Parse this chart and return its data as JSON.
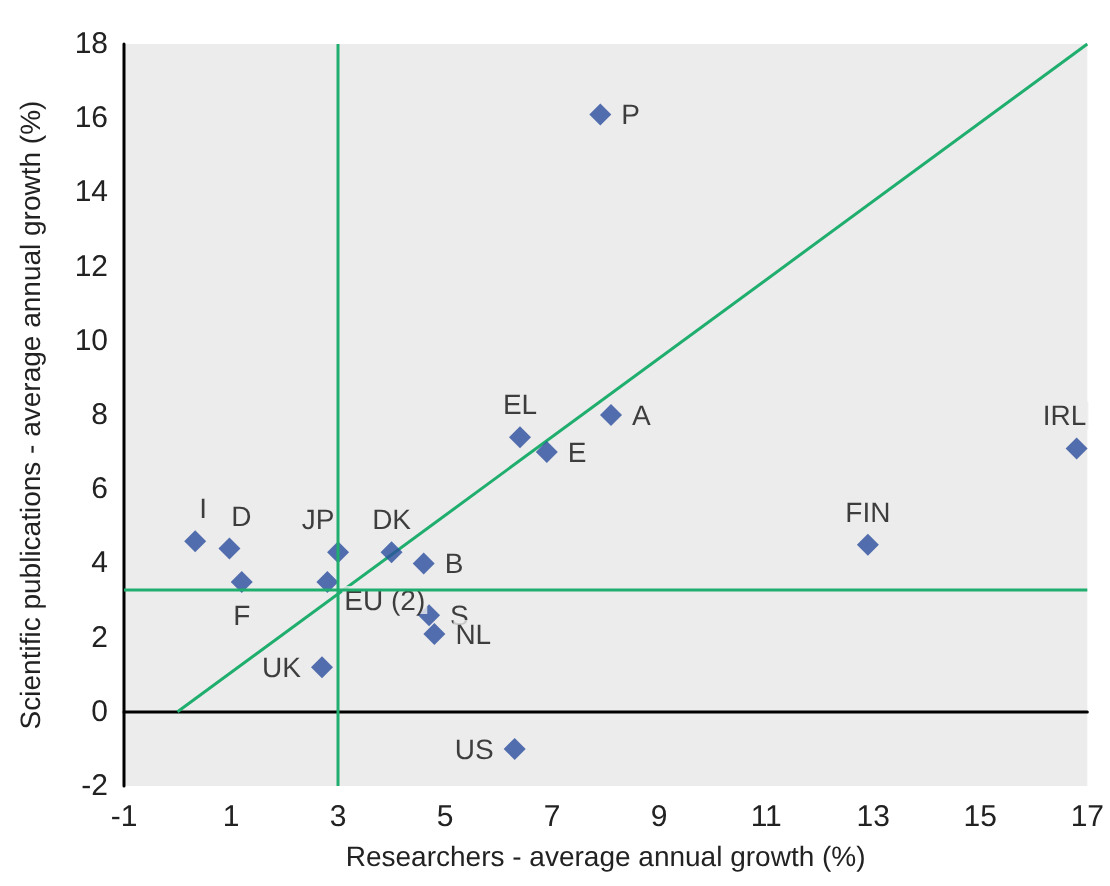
{
  "chart_data": {
    "type": "scatter",
    "xlabel": "Researchers - average annual growth (%)",
    "ylabel": "Scientific publications - average annual growth (%)",
    "xlim": [
      -1,
      17
    ],
    "xticks": [
      -1,
      1,
      3,
      5,
      7,
      9,
      11,
      13,
      15,
      17
    ],
    "ylim": [
      -2,
      18
    ],
    "yticks": [
      -2,
      0,
      2,
      4,
      6,
      8,
      10,
      12,
      14,
      16,
      18
    ],
    "grid": false,
    "legend": false,
    "marker": "diamond",
    "ref_lines": [
      {
        "axis": "x",
        "value": 3.0,
        "color": "#1fae6e"
      },
      {
        "axis": "y",
        "value": 3.3,
        "color": "#1fae6e"
      }
    ],
    "series": [
      {
        "name": "I",
        "color": "#2b4e9e",
        "x": [
          0.33
        ],
        "values": [
          4.6
        ]
      },
      {
        "name": "D",
        "color": "#2b4e9e",
        "x": [
          0.97
        ],
        "values": [
          4.4
        ]
      },
      {
        "name": "F",
        "color": "#2b4e9e",
        "x": [
          1.2
        ],
        "values": [
          3.5
        ]
      },
      {
        "name": "JP",
        "color": "#2b4e9e",
        "x": [
          3.0
        ],
        "values": [
          4.3
        ]
      },
      {
        "name": "EU (2)",
        "color": "#2b4e9e",
        "x": [
          2.8
        ],
        "values": [
          3.5
        ]
      },
      {
        "name": "UK",
        "color": "#2b4e9e",
        "x": [
          2.7
        ],
        "values": [
          1.2
        ]
      },
      {
        "name": "DK",
        "color": "#2b4e9e",
        "x": [
          4.0
        ],
        "values": [
          4.3
        ]
      },
      {
        "name": "B",
        "color": "#2b4e9e",
        "x": [
          4.6
        ],
        "values": [
          4.0
        ]
      },
      {
        "name": "S",
        "color": "#2b4e9e",
        "x": [
          4.7
        ],
        "values": [
          2.6
        ]
      },
      {
        "name": "NL",
        "color": "#2b4e9e",
        "x": [
          4.8
        ],
        "values": [
          2.1
        ]
      },
      {
        "name": "US",
        "color": "#2b4e9e",
        "x": [
          6.3
        ],
        "values": [
          -1.0
        ]
      },
      {
        "name": "EL",
        "color": "#2b4e9e",
        "x": [
          6.4
        ],
        "values": [
          7.4
        ]
      },
      {
        "name": "E",
        "color": "#2b4e9e",
        "x": [
          6.9
        ],
        "values": [
          7.0
        ]
      },
      {
        "name": "A",
        "color": "#2b4e9e",
        "x": [
          8.1
        ],
        "values": [
          8.0
        ]
      },
      {
        "name": "P",
        "color": "#2b4e9e",
        "x": [
          7.9
        ],
        "values": [
          16.1
        ]
      },
      {
        "name": "FIN",
        "color": "#2b4e9e",
        "x": [
          12.9
        ],
        "values": [
          4.5
        ]
      },
      {
        "name": "IRL",
        "color": "#2b4e9e",
        "x": [
          16.8
        ],
        "values": [
          7.1
        ]
      },
      {
        "type": "line",
        "color": "#1fae6e",
        "marker": "none",
        "x": [
          0,
          17
        ],
        "values": [
          0,
          18
        ]
      }
    ]
  }
}
